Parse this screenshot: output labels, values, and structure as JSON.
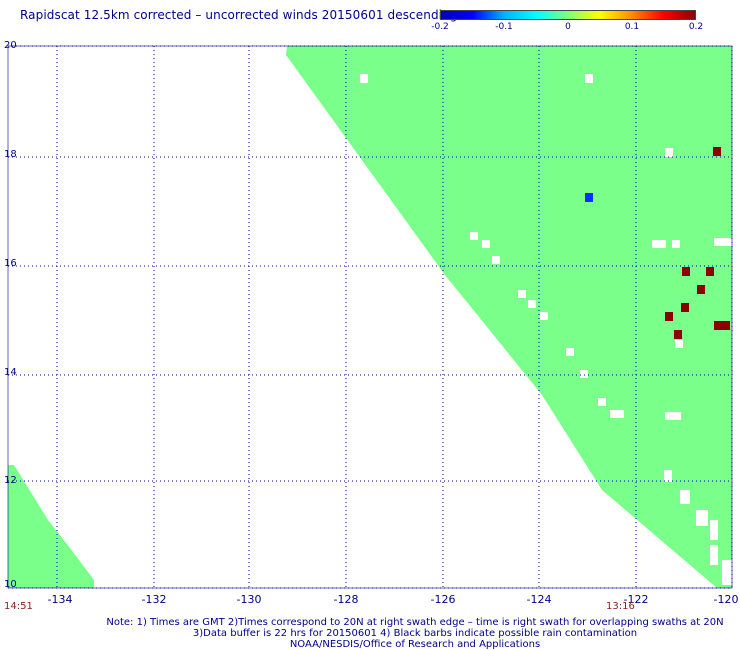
{
  "title": "Rapidscat 12.5km corrected – uncorrected winds 20150601 descending",
  "colorbar": {
    "ticks": [
      "-0.2",
      "-0.1",
      "0",
      "0.1",
      "0.2"
    ],
    "colors": [
      "#0000b4",
      "#0000ff",
      "#00b4ff",
      "#00ffff",
      "#7fff7f",
      "#ffff00",
      "#ff8c00",
      "#ff0000",
      "#8b0000"
    ]
  },
  "axes": {
    "lat_labels": [
      "20",
      "18",
      "16",
      "14",
      "12",
      "10"
    ],
    "lon_labels": [
      "-134",
      "-132",
      "-130",
      "-128",
      "-126",
      "-124",
      "-122",
      "-120"
    ]
  },
  "times": {
    "left": "14:51",
    "right": "13:16"
  },
  "notes": [
    "Note: 1) Times are GMT 2)Times correspond to 20N at right swath edge – time is right swath for overlapping swaths at 20N",
    "3)Data buffer is 22 hrs for 20150601 4) Black barbs indicate possible rain contamination",
    "NOAA/NESDIS/Office of Research and Applications"
  ],
  "colors": {
    "swath": "#79ff8a",
    "high": "#8b0000",
    "low": "#0033ff",
    "grid": "#00008b"
  }
}
